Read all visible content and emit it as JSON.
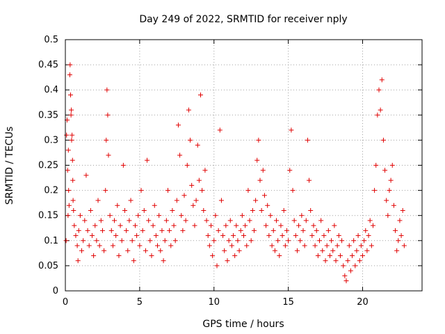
{
  "chart_data": {
    "type": "scatter",
    "title": "Day 249 of 2022, SRMTID for receiver nply",
    "xlabel": "GPS time / hours",
    "ylabel": "SRMTID / TECUs",
    "xlim": [
      0,
      24
    ],
    "ylim": [
      0,
      0.5
    ],
    "grid": true,
    "x_ticks": [
      "0",
      "5",
      "10",
      "15",
      "20"
    ],
    "y_ticks": [
      "0",
      "0.05",
      "0.1",
      "0.15",
      "0.2",
      "0.25",
      "0.3",
      "0.35",
      "0.4",
      "0.45",
      "0.5"
    ],
    "marker": "+",
    "marker_color": "#e00000",
    "series": [
      {
        "points": [
          [
            0.05,
            0.1
          ],
          [
            0.08,
            0.31
          ],
          [
            0.12,
            0.34
          ],
          [
            0.15,
            0.24
          ],
          [
            0.18,
            0.15
          ],
          [
            0.2,
            0.28
          ],
          [
            0.22,
            0.2
          ],
          [
            0.25,
            0.17
          ],
          [
            0.3,
            0.43
          ],
          [
            0.32,
            0.45
          ],
          [
            0.35,
            0.39
          ],
          [
            0.38,
            0.35
          ],
          [
            0.4,
            0.36
          ],
          [
            0.42,
            0.3
          ],
          [
            0.45,
            0.31
          ],
          [
            0.48,
            0.26
          ],
          [
            0.5,
            0.22
          ],
          [
            0.52,
            0.18
          ],
          [
            0.55,
            0.16
          ],
          [
            0.6,
            0.13
          ],
          [
            0.7,
            0.11
          ],
          [
            0.8,
            0.09
          ],
          [
            0.85,
            0.06
          ],
          [
            0.9,
            0.12
          ],
          [
            1.0,
            0.15
          ],
          [
            1.1,
            0.08
          ],
          [
            1.2,
            0.1
          ],
          [
            1.3,
            0.14
          ],
          [
            1.4,
            0.23
          ],
          [
            1.5,
            0.12
          ],
          [
            1.6,
            0.09
          ],
          [
            1.7,
            0.16
          ],
          [
            1.8,
            0.11
          ],
          [
            1.9,
            0.07
          ],
          [
            2.0,
            0.13
          ],
          [
            2.1,
            0.1
          ],
          [
            2.2,
            0.18
          ],
          [
            2.3,
            0.09
          ],
          [
            2.4,
            0.14
          ],
          [
            2.5,
            0.12
          ],
          [
            2.6,
            0.08
          ],
          [
            2.7,
            0.2
          ],
          [
            2.75,
            0.3
          ],
          [
            2.8,
            0.4
          ],
          [
            2.85,
            0.35
          ],
          [
            2.9,
            0.27
          ],
          [
            3.0,
            0.15
          ],
          [
            3.1,
            0.12
          ],
          [
            3.2,
            0.09
          ],
          [
            3.3,
            0.14
          ],
          [
            3.4,
            0.11
          ],
          [
            3.5,
            0.17
          ],
          [
            3.6,
            0.07
          ],
          [
            3.7,
            0.13
          ],
          [
            3.8,
            0.1
          ],
          [
            3.9,
            0.25
          ],
          [
            4.0,
            0.16
          ],
          [
            4.1,
            0.12
          ],
          [
            4.2,
            0.08
          ],
          [
            4.3,
            0.14
          ],
          [
            4.4,
            0.18
          ],
          [
            4.5,
            0.1
          ],
          [
            4.6,
            0.06
          ],
          [
            4.7,
            0.13
          ],
          [
            4.8,
            0.11
          ],
          [
            4.9,
            0.15
          ],
          [
            5.0,
            0.09
          ],
          [
            5.1,
            0.2
          ],
          [
            5.2,
            0.12
          ],
          [
            5.3,
            0.16
          ],
          [
            5.4,
            0.08
          ],
          [
            5.5,
            0.26
          ],
          [
            5.6,
            0.14
          ],
          [
            5.7,
            0.1
          ],
          [
            5.8,
            0.07
          ],
          [
            5.9,
            0.13
          ],
          [
            6.0,
            0.17
          ],
          [
            6.1,
            0.11
          ],
          [
            6.2,
            0.09
          ],
          [
            6.3,
            0.15
          ],
          [
            6.4,
            0.08
          ],
          [
            6.5,
            0.12
          ],
          [
            6.6,
            0.06
          ],
          [
            6.7,
            0.1
          ],
          [
            6.8,
            0.14
          ],
          [
            6.9,
            0.2
          ],
          [
            7.0,
            0.12
          ],
          [
            7.1,
            0.09
          ],
          [
            7.2,
            0.16
          ],
          [
            7.3,
            0.13
          ],
          [
            7.4,
            0.1
          ],
          [
            7.5,
            0.18
          ],
          [
            7.6,
            0.33
          ],
          [
            7.7,
            0.27
          ],
          [
            7.8,
            0.15
          ],
          [
            7.9,
            0.12
          ],
          [
            8.0,
            0.19
          ],
          [
            8.1,
            0.14
          ],
          [
            8.2,
            0.25
          ],
          [
            8.3,
            0.36
          ],
          [
            8.4,
            0.3
          ],
          [
            8.5,
            0.21
          ],
          [
            8.6,
            0.17
          ],
          [
            8.7,
            0.13
          ],
          [
            8.8,
            0.18
          ],
          [
            8.9,
            0.29
          ],
          [
            9.0,
            0.22
          ],
          [
            9.1,
            0.39
          ],
          [
            9.2,
            0.2
          ],
          [
            9.3,
            0.16
          ],
          [
            9.4,
            0.24
          ],
          [
            9.5,
            0.14
          ],
          [
            9.6,
            0.11
          ],
          [
            9.7,
            0.09
          ],
          [
            9.8,
            0.13
          ],
          [
            9.9,
            0.07
          ],
          [
            10.0,
            0.1
          ],
          [
            10.1,
            0.15
          ],
          [
            10.2,
            0.05
          ],
          [
            10.3,
            0.12
          ],
          [
            10.4,
            0.32
          ],
          [
            10.5,
            0.18
          ],
          [
            10.6,
            0.11
          ],
          [
            10.7,
            0.08
          ],
          [
            10.8,
            0.13
          ],
          [
            10.9,
            0.06
          ],
          [
            11.0,
            0.1
          ],
          [
            11.1,
            0.14
          ],
          [
            11.2,
            0.09
          ],
          [
            11.3,
            0.11
          ],
          [
            11.4,
            0.07
          ],
          [
            11.5,
            0.13
          ],
          [
            11.6,
            0.1
          ],
          [
            11.7,
            0.08
          ],
          [
            11.8,
            0.12
          ],
          [
            11.9,
            0.15
          ],
          [
            12.0,
            0.11
          ],
          [
            12.1,
            0.13
          ],
          [
            12.2,
            0.09
          ],
          [
            12.3,
            0.2
          ],
          [
            12.4,
            0.14
          ],
          [
            12.5,
            0.1
          ],
          [
            12.6,
            0.16
          ],
          [
            12.7,
            0.12
          ],
          [
            12.8,
            0.18
          ],
          [
            12.9,
            0.26
          ],
          [
            13.0,
            0.3
          ],
          [
            13.1,
            0.22
          ],
          [
            13.2,
            0.16
          ],
          [
            13.3,
            0.24
          ],
          [
            13.4,
            0.19
          ],
          [
            13.5,
            0.13
          ],
          [
            13.6,
            0.17
          ],
          [
            13.7,
            0.11
          ],
          [
            13.8,
            0.15
          ],
          [
            13.9,
            0.09
          ],
          [
            14.0,
            0.12
          ],
          [
            14.1,
            0.08
          ],
          [
            14.2,
            0.14
          ],
          [
            14.3,
            0.1
          ],
          [
            14.4,
            0.07
          ],
          [
            14.5,
            0.13
          ],
          [
            14.6,
            0.11
          ],
          [
            14.7,
            0.16
          ],
          [
            14.8,
            0.09
          ],
          [
            14.9,
            0.12
          ],
          [
            15.0,
            0.1
          ],
          [
            15.1,
            0.24
          ],
          [
            15.2,
            0.32
          ],
          [
            15.3,
            0.2
          ],
          [
            15.4,
            0.14
          ],
          [
            15.5,
            0.11
          ],
          [
            15.6,
            0.08
          ],
          [
            15.7,
            0.13
          ],
          [
            15.8,
            0.1
          ],
          [
            15.9,
            0.15
          ],
          [
            16.0,
            0.12
          ],
          [
            16.1,
            0.09
          ],
          [
            16.2,
            0.14
          ],
          [
            16.3,
            0.3
          ],
          [
            16.4,
            0.22
          ],
          [
            16.5,
            0.16
          ],
          [
            16.6,
            0.11
          ],
          [
            16.7,
            0.13
          ],
          [
            16.8,
            0.09
          ],
          [
            16.9,
            0.12
          ],
          [
            17.0,
            0.07
          ],
          [
            17.1,
            0.1
          ],
          [
            17.2,
            0.14
          ],
          [
            17.3,
            0.08
          ],
          [
            17.4,
            0.11
          ],
          [
            17.5,
            0.06
          ],
          [
            17.6,
            0.09
          ],
          [
            17.7,
            0.12
          ],
          [
            17.8,
            0.07
          ],
          [
            17.9,
            0.1
          ],
          [
            18.0,
            0.08
          ],
          [
            18.1,
            0.13
          ],
          [
            18.2,
            0.06
          ],
          [
            18.3,
            0.09
          ],
          [
            18.4,
            0.11
          ],
          [
            18.5,
            0.07
          ],
          [
            18.6,
            0.1
          ],
          [
            18.7,
            0.05
          ],
          [
            18.8,
            0.03
          ],
          [
            18.9,
            0.02
          ],
          [
            19.0,
            0.06
          ],
          [
            19.1,
            0.09
          ],
          [
            19.2,
            0.04
          ],
          [
            19.3,
            0.07
          ],
          [
            19.4,
            0.1
          ],
          [
            19.5,
            0.05
          ],
          [
            19.6,
            0.08
          ],
          [
            19.7,
            0.11
          ],
          [
            19.8,
            0.06
          ],
          [
            19.9,
            0.09
          ],
          [
            20.0,
            0.07
          ],
          [
            20.1,
            0.1
          ],
          [
            20.2,
            0.12
          ],
          [
            20.3,
            0.08
          ],
          [
            20.4,
            0.11
          ],
          [
            20.5,
            0.14
          ],
          [
            20.6,
            0.09
          ],
          [
            20.7,
            0.13
          ],
          [
            20.8,
            0.2
          ],
          [
            20.9,
            0.25
          ],
          [
            21.0,
            0.35
          ],
          [
            21.1,
            0.4
          ],
          [
            21.2,
            0.36
          ],
          [
            21.3,
            0.42
          ],
          [
            21.4,
            0.3
          ],
          [
            21.5,
            0.24
          ],
          [
            21.6,
            0.18
          ],
          [
            21.7,
            0.15
          ],
          [
            21.8,
            0.2
          ],
          [
            21.9,
            0.22
          ],
          [
            22.0,
            0.25
          ],
          [
            22.1,
            0.17
          ],
          [
            22.2,
            0.12
          ],
          [
            22.3,
            0.08
          ],
          [
            22.4,
            0.1
          ],
          [
            22.5,
            0.14
          ],
          [
            22.6,
            0.11
          ],
          [
            22.7,
            0.16
          ],
          [
            22.8,
            0.09
          ]
        ]
      }
    ]
  }
}
